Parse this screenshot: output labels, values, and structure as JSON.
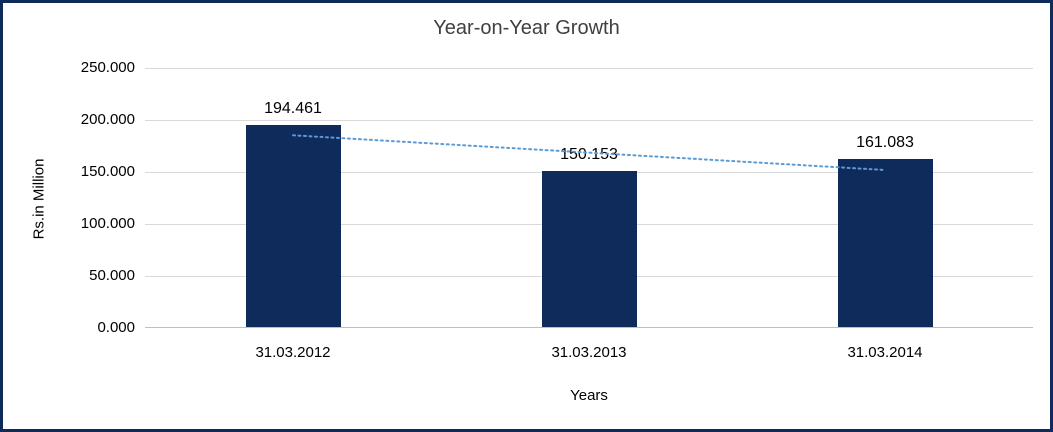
{
  "chart_data": {
    "type": "bar",
    "title": "Year-on-Year Growth",
    "xlabel": "Years",
    "ylabel": "Rs.in Million",
    "categories": [
      "31.03.2012",
      "31.03.2013",
      "31.03.2014"
    ],
    "values": [
      194.461,
      150.153,
      161.083
    ],
    "value_labels": [
      "194.461",
      "150.153",
      "161.083"
    ],
    "ylim": [
      0,
      250
    ],
    "y_tick_step": 50,
    "y_tick_labels": [
      "0.000",
      "50.000",
      "100.000",
      "150.000",
      "200.000",
      "250.000"
    ],
    "grid": true,
    "legend": "none",
    "trendline": {
      "type": "linear",
      "style": "dotted",
      "color": "#5B9BD5",
      "points": [
        185.3,
        168.6,
        151.9
      ]
    },
    "colors": {
      "bar": "#0F2B5C",
      "frame_border": "#0F2B5C",
      "title_text": "#404040",
      "gridline": "#D9D9D9",
      "axis_line": "#BFBFBF",
      "label_text": "#000000"
    }
  }
}
